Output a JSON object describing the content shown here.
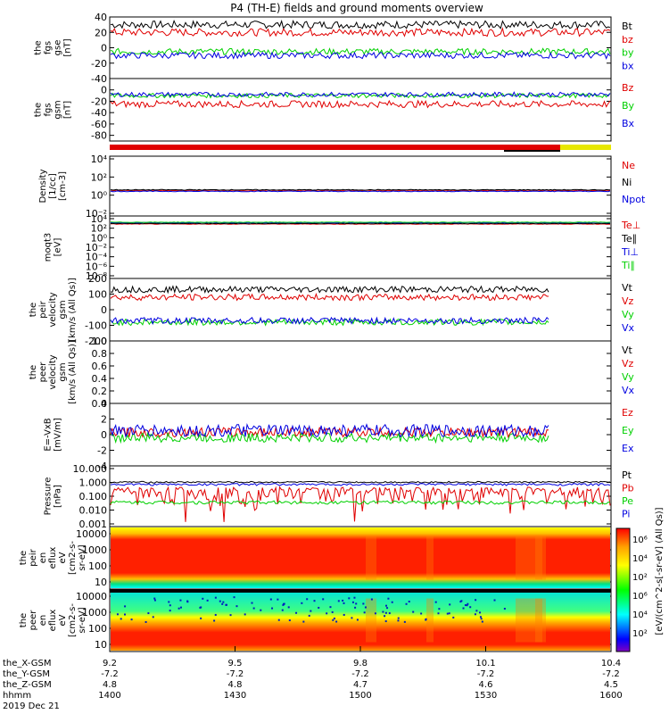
{
  "title": "P4 (TH-E) fields and ground moments overview",
  "colors": {
    "black": "#000000",
    "red": "#e00000",
    "green": "#00d000",
    "blue": "#0000e0",
    "yellow": "#e8e800"
  },
  "chart_data": [
    {
      "type": "line",
      "ylabel": [
        "the",
        "fgs",
        "gse",
        "[nT]"
      ],
      "ylim": [
        -40,
        40
      ],
      "yticks": [
        -40,
        -20,
        0,
        20,
        40
      ],
      "series": [
        {
          "name": "Bt",
          "color": "black",
          "base": 30,
          "amp": 5
        },
        {
          "name": "bz",
          "color": "red",
          "base": 20,
          "amp": 5
        },
        {
          "name": "by",
          "color": "green",
          "base": -5,
          "amp": 4
        },
        {
          "name": "bx",
          "color": "blue",
          "base": -10,
          "amp": 4
        }
      ]
    },
    {
      "type": "line",
      "ylabel": [
        "the",
        "fgs",
        "gsm",
        "[nT]"
      ],
      "ylim": [
        -90,
        20
      ],
      "yticks": [
        -80,
        -60,
        -40,
        -20,
        0
      ],
      "series": [
        {
          "name": "Bz",
          "color": "red",
          "base": -25,
          "amp": 6
        },
        {
          "name": "By",
          "color": "green",
          "base": -10,
          "amp": 4
        },
        {
          "name": "Bx",
          "color": "blue",
          "base": -8,
          "amp": 4
        }
      ]
    },
    {
      "type": "line",
      "ylabel": [
        "Density",
        "[1/cc]",
        "[cm-3]"
      ],
      "ylim": [
        -3,
        5
      ],
      "log": true,
      "yticks": [
        4,
        2,
        0,
        -2
      ],
      "series": [
        {
          "name": "Ne",
          "color": "red",
          "base": 0.4,
          "amp": 0.05
        },
        {
          "name": "Ni",
          "color": "black",
          "base": 0.5,
          "amp": 0.05
        },
        {
          "name": "Npot",
          "color": "blue",
          "base": 0.3,
          "amp": 0.05
        }
      ]
    },
    {
      "type": "line",
      "ylabel": [
        "moqt3",
        "[eV]"
      ],
      "ylim": [
        -9,
        5
      ],
      "log": true,
      "yticks": [
        4,
        2,
        0,
        -2,
        -4,
        -6,
        -8
      ],
      "series": [
        {
          "name": "Te⊥",
          "color": "red",
          "base": 3.2,
          "amp": 0.05
        },
        {
          "name": "Te∥",
          "color": "black",
          "base": 3.3,
          "amp": 0.05
        },
        {
          "name": "Ti⊥",
          "color": "blue",
          "base": 3.5,
          "amp": 0.05
        },
        {
          "name": "Ti∥",
          "color": "green",
          "base": 3.6,
          "amp": 0.05
        }
      ]
    },
    {
      "type": "line",
      "ylabel": [
        "the",
        "peir",
        "velocity",
        "gsm",
        "[km/s (All Qs)]"
      ],
      "ylim": [
        -200,
        200
      ],
      "yticks": [
        -200,
        -100,
        0,
        100,
        200
      ],
      "series": [
        {
          "name": "Vt",
          "color": "black",
          "base": 130,
          "amp": 20
        },
        {
          "name": "Vz",
          "color": "red",
          "base": 80,
          "amp": 20
        },
        {
          "name": "Vy",
          "color": "green",
          "base": -80,
          "amp": 20
        },
        {
          "name": "Vx",
          "color": "blue",
          "base": -70,
          "amp": 20
        }
      ]
    },
    {
      "type": "line",
      "ylabel": [
        "the",
        "peer",
        "velocity",
        "gsm",
        "[km/s (All Qs)]"
      ],
      "ylim": [
        0,
        1
      ],
      "yticks": [
        0.0,
        0.2,
        0.4,
        0.6,
        0.8,
        1.0
      ],
      "series": [
        {
          "name": "Vt",
          "color": "black"
        },
        {
          "name": "Vz",
          "color": "red"
        },
        {
          "name": "Vy",
          "color": "green"
        },
        {
          "name": "Vx",
          "color": "blue"
        }
      ]
    },
    {
      "type": "line",
      "ylabel": [
        "E=-VxB",
        "[mV/m]"
      ],
      "ylim": [
        -4,
        4
      ],
      "yticks": [
        -4,
        -2,
        0,
        2,
        4
      ],
      "series": [
        {
          "name": "Ez",
          "color": "red",
          "base": 0.3,
          "amp": 0.6
        },
        {
          "name": "Ey",
          "color": "green",
          "base": -0.4,
          "amp": 0.6
        },
        {
          "name": "Ex",
          "color": "blue",
          "base": 0.5,
          "amp": 0.8
        }
      ]
    },
    {
      "type": "line",
      "ylabel": [
        "Pressure",
        "[nPa]"
      ],
      "ylim": [
        0.001,
        10
      ],
      "log": true,
      "yticks": [
        "10.000",
        "1.000",
        "0.100",
        "0.010",
        "0.001"
      ],
      "series": [
        {
          "name": "Pt",
          "color": "black",
          "base": 0.85,
          "amp": 0.1
        },
        {
          "name": "Pb",
          "color": "red",
          "base": 0.2,
          "amp": 0.2
        },
        {
          "name": "Pe",
          "color": "green",
          "base": 0.04,
          "amp": 0.01
        },
        {
          "name": "Pi",
          "color": "blue",
          "base": 0.6,
          "amp": 0.1
        }
      ]
    },
    {
      "type": "heatmap",
      "ylabel": [
        "the",
        "peir",
        "en",
        "eflux",
        "eV",
        "[cm2-s-",
        "sr-eV]"
      ],
      "yticks": [
        "10000",
        "1000",
        "100",
        "10"
      ]
    },
    {
      "type": "heatmap",
      "ylabel": [
        "the",
        "peer",
        "en",
        "eflux",
        "eV",
        "[cm2-s-",
        "sr-eV]"
      ],
      "yticks": [
        "10000",
        "1000",
        "100",
        "10"
      ]
    }
  ],
  "colorbar": {
    "label": "[eV/(cm^2-s[-sr-eV] (All Qs)]",
    "ticks": [
      "10⁶",
      "10⁴",
      "10²",
      "10⁶",
      "10⁴",
      "10²"
    ]
  },
  "xaxis": {
    "rows": [
      {
        "label": "the_X-GSM",
        "values": [
          "9.2",
          "9.5",
          "9.8",
          "10.1",
          "10.4"
        ]
      },
      {
        "label": "the_Y-GSM",
        "values": [
          "-7.2",
          "-7.2",
          "-7.2",
          "-7.2",
          "-7.2"
        ]
      },
      {
        "label": "the_Z-GSM",
        "values": [
          "4.8",
          "4.8",
          "4.7",
          "4.6",
          "4.5"
        ]
      },
      {
        "label": "hhmm",
        "values": [
          "1400",
          "1430",
          "1500",
          "1530",
          "1600"
        ]
      }
    ],
    "date": "2019 Dec 21"
  }
}
